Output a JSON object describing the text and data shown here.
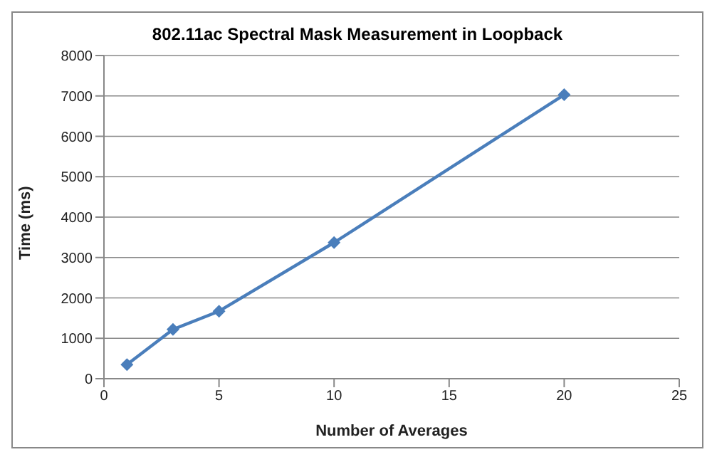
{
  "chart_data": {
    "type": "line",
    "title": "802.11ac Spectral Mask Measurement in Loopback",
    "xlabel": "Number of Averages",
    "ylabel": "Time (ms)",
    "x": [
      1,
      3,
      5,
      10,
      20
    ],
    "series": [
      {
        "color": "#4a7ebb",
        "values": [
          350,
          1220,
          1670,
          3370,
          7030
        ]
      }
    ],
    "xlim": [
      0,
      25
    ],
    "xticks": [
      0,
      5,
      10,
      15,
      20,
      25
    ],
    "ylim": [
      0,
      8000
    ],
    "yticks": [
      0,
      1000,
      2000,
      3000,
      4000,
      5000,
      6000,
      7000,
      8000
    ],
    "grid": "y",
    "marker": "diamond",
    "legend": false
  }
}
